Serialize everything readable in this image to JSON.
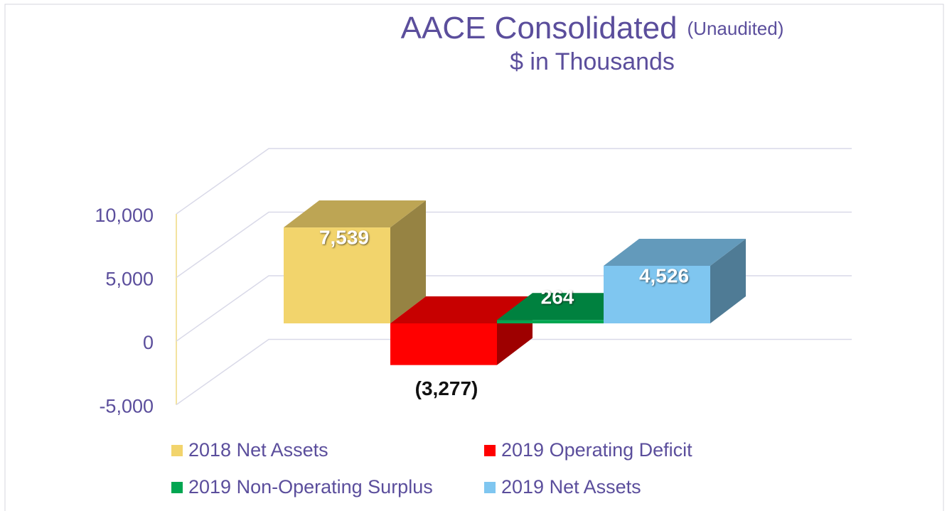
{
  "chart_data": {
    "type": "bar3d",
    "title": "AACE Consolidated",
    "title_note": "(Unaudited)",
    "subtitle": "$ in Thousands",
    "ylim": [
      -5000,
      10000
    ],
    "yticks": [
      {
        "value": -5000,
        "label": "-5,000"
      },
      0,
      {
        "value": 5000,
        "label": "5,000"
      },
      {
        "value": 10000,
        "label": "10,000"
      }
    ],
    "grid": true,
    "series": [
      {
        "name": "2018 Net Assets",
        "color": "#F2D46C",
        "values": [
          7539
        ],
        "value_labels": [
          "7,539"
        ]
      },
      {
        "name": "2019 Operating Deficit",
        "color": "#FF0000",
        "values": [
          -3277
        ],
        "value_labels": [
          "(3,277)"
        ]
      },
      {
        "name": "2019 Non-Operating Surplus",
        "color": "#00A651",
        "values": [
          264
        ],
        "value_labels": [
          "264"
        ]
      },
      {
        "name": "2019 Net Assets",
        "color": "#7FC6F0",
        "values": [
          4526
        ],
        "value_labels": [
          "4,526"
        ]
      }
    ]
  }
}
